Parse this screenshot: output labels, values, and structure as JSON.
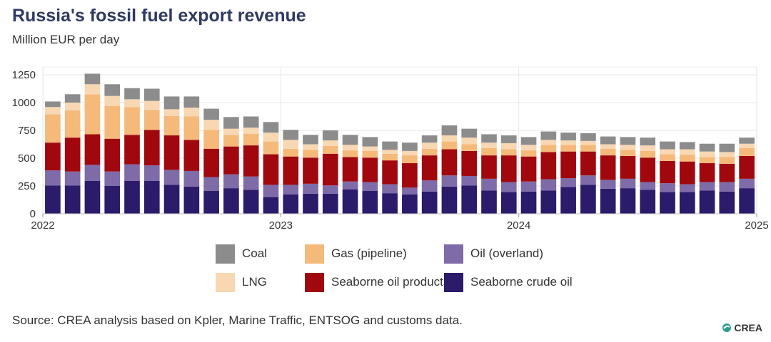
{
  "title": "Russia's fossil fuel export revenue",
  "subtitle": "Million EUR per day",
  "source": "Source: CREA analysis based on Kpler, Marine Traffic, ENTSOG and customs data.",
  "logo_text": "CREA",
  "chart_data": {
    "type": "bar",
    "stacked": true,
    "ylim": [
      0,
      1250
    ],
    "yticks": [
      0,
      250,
      500,
      750,
      1000,
      1250
    ],
    "xticks": [
      {
        "label": "2022",
        "month": 0
      },
      {
        "label": "2023",
        "month": 12
      },
      {
        "label": "2024",
        "month": 24
      },
      {
        "label": "2025",
        "month": 36
      }
    ],
    "grid": true,
    "legend_position": "bottom",
    "categories": [
      "2022-01",
      "2022-02",
      "2022-03",
      "2022-04",
      "2022-05",
      "2022-06",
      "2022-07",
      "2022-08",
      "2022-09",
      "2022-10",
      "2022-11",
      "2022-12",
      "2023-01",
      "2023-02",
      "2023-03",
      "2023-04",
      "2023-05",
      "2023-06",
      "2023-07",
      "2023-08",
      "2023-09",
      "2023-10",
      "2023-11",
      "2023-12",
      "2024-01",
      "2024-02",
      "2024-03",
      "2024-04",
      "2024-05",
      "2024-06",
      "2024-07",
      "2024-08",
      "2024-09",
      "2024-10",
      "2024-11",
      "2024-12"
    ],
    "series": [
      {
        "name": "Seaborne crude oil",
        "color": "#2c1a6b",
        "values": [
          255,
          255,
          295,
          250,
          295,
          295,
          260,
          245,
          205,
          230,
          215,
          150,
          175,
          180,
          180,
          220,
          205,
          185,
          175,
          200,
          245,
          255,
          210,
          195,
          200,
          210,
          240,
          260,
          225,
          230,
          215,
          195,
          195,
          210,
          200,
          230
        ]
      },
      {
        "name": "Oil (overland)",
        "color": "#7e6ba8",
        "values": [
          135,
          125,
          145,
          130,
          150,
          140,
          135,
          140,
          125,
          125,
          120,
          110,
          85,
          90,
          75,
          70,
          80,
          80,
          60,
          100,
          100,
          85,
          105,
          90,
          90,
          100,
          80,
          85,
          80,
          85,
          70,
          80,
          70,
          75,
          85,
          85
        ]
      },
      {
        "name": "Seaborne oil products",
        "color": "#a0080e",
        "values": [
          250,
          305,
          275,
          295,
          265,
          320,
          310,
          280,
          255,
          250,
          280,
          275,
          255,
          235,
          285,
          220,
          220,
          215,
          220,
          225,
          235,
          225,
          210,
          240,
          225,
          245,
          240,
          215,
          220,
          205,
          220,
          200,
          205,
          170,
          165,
          205
        ]
      },
      {
        "name": "Gas (pipeline)",
        "color": "#f5b97a",
        "values": [
          255,
          245,
          360,
          295,
          250,
          180,
          175,
          210,
          170,
          105,
          105,
          115,
          70,
          70,
          70,
          60,
          60,
          60,
          70,
          60,
          70,
          60,
          65,
          55,
          55,
          65,
          60,
          60,
          60,
          55,
          60,
          60,
          60,
          55,
          60,
          70
        ]
      },
      {
        "name": "LNG",
        "color": "#f8d7b3",
        "values": [
          65,
          70,
          90,
          90,
          70,
          80,
          60,
          80,
          90,
          55,
          55,
          80,
          80,
          50,
          50,
          50,
          40,
          35,
          40,
          55,
          55,
          60,
          50,
          55,
          50,
          45,
          40,
          35,
          40,
          45,
          50,
          45,
          50,
          50,
          45,
          40
        ]
      },
      {
        "name": "Coal",
        "color": "#8c8c8c",
        "values": [
          50,
          75,
          95,
          105,
          100,
          110,
          115,
          100,
          100,
          105,
          100,
          95,
          90,
          85,
          90,
          90,
          85,
          75,
          75,
          65,
          90,
          80,
          75,
          70,
          70,
          75,
          70,
          70,
          70,
          70,
          70,
          70,
          65,
          70,
          75,
          55
        ]
      }
    ]
  },
  "legend_order": [
    {
      "name": "Coal",
      "color": "#8c8c8c"
    },
    {
      "name": "Gas (pipeline)",
      "color": "#f5b97a"
    },
    {
      "name": "Oil (overland)",
      "color": "#7e6ba8"
    },
    {
      "name": "LNG",
      "color": "#f8d7b3"
    },
    {
      "name": "Seaborne oil products",
      "color": "#a0080e"
    },
    {
      "name": "Seaborne crude oil",
      "color": "#2c1a6b"
    }
  ]
}
